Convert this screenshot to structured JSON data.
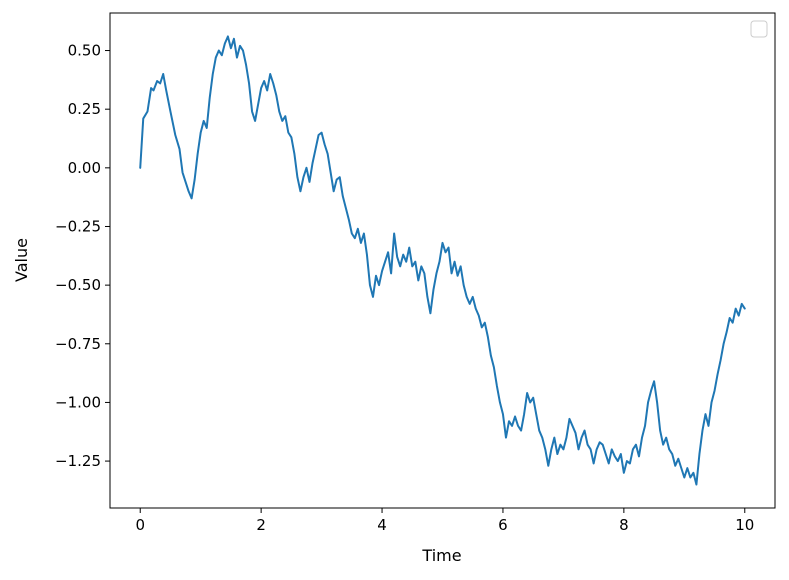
{
  "chart_data": {
    "type": "line",
    "title": "",
    "xlabel": "Time",
    "ylabel": "Value",
    "xlim": [
      -0.5,
      10.5
    ],
    "ylim": [
      -1.45,
      0.66
    ],
    "xticks": [
      0,
      2,
      4,
      6,
      8,
      10
    ],
    "xtick_labels": [
      "0",
      "2",
      "4",
      "6",
      "8",
      "10"
    ],
    "yticks": [
      0.5,
      0.25,
      0.0,
      -0.25,
      -0.5,
      -0.75,
      -1.0,
      -1.25
    ],
    "ytick_labels": [
      "0.50",
      "0.25",
      "0.00",
      "−0.25",
      "−0.50",
      "−0.75",
      "−1.00",
      "−1.25"
    ],
    "grid": false,
    "legend": {
      "placement": "top-right",
      "entries": []
    },
    "series": [
      {
        "color": "#1f77b4",
        "points": [
          [
            0.0,
            0.0
          ],
          [
            0.05,
            0.21
          ],
          [
            0.12,
            0.24
          ],
          [
            0.18,
            0.34
          ],
          [
            0.22,
            0.33
          ],
          [
            0.28,
            0.37
          ],
          [
            0.33,
            0.36
          ],
          [
            0.38,
            0.4
          ],
          [
            0.43,
            0.33
          ],
          [
            0.5,
            0.24
          ],
          [
            0.58,
            0.14
          ],
          [
            0.65,
            0.08
          ],
          [
            0.7,
            -0.02
          ],
          [
            0.75,
            -0.06
          ],
          [
            0.8,
            -0.1
          ],
          [
            0.85,
            -0.13
          ],
          [
            0.9,
            -0.05
          ],
          [
            0.95,
            0.06
          ],
          [
            1.0,
            0.15
          ],
          [
            1.05,
            0.2
          ],
          [
            1.1,
            0.17
          ],
          [
            1.15,
            0.3
          ],
          [
            1.2,
            0.4
          ],
          [
            1.25,
            0.47
          ],
          [
            1.3,
            0.5
          ],
          [
            1.35,
            0.48
          ],
          [
            1.4,
            0.53
          ],
          [
            1.45,
            0.56
          ],
          [
            1.5,
            0.51
          ],
          [
            1.55,
            0.55
          ],
          [
            1.6,
            0.47
          ],
          [
            1.65,
            0.52
          ],
          [
            1.7,
            0.5
          ],
          [
            1.75,
            0.44
          ],
          [
            1.8,
            0.36
          ],
          [
            1.85,
            0.24
          ],
          [
            1.9,
            0.2
          ],
          [
            1.95,
            0.27
          ],
          [
            2.0,
            0.34
          ],
          [
            2.05,
            0.37
          ],
          [
            2.1,
            0.33
          ],
          [
            2.15,
            0.4
          ],
          [
            2.2,
            0.36
          ],
          [
            2.25,
            0.31
          ],
          [
            2.3,
            0.24
          ],
          [
            2.35,
            0.2
          ],
          [
            2.4,
            0.22
          ],
          [
            2.45,
            0.15
          ],
          [
            2.5,
            0.13
          ],
          [
            2.55,
            0.06
          ],
          [
            2.6,
            -0.04
          ],
          [
            2.65,
            -0.1
          ],
          [
            2.7,
            -0.04
          ],
          [
            2.75,
            0.0
          ],
          [
            2.8,
            -0.06
          ],
          [
            2.85,
            0.02
          ],
          [
            2.9,
            0.08
          ],
          [
            2.95,
            0.14
          ],
          [
            3.0,
            0.15
          ],
          [
            3.05,
            0.1
          ],
          [
            3.1,
            0.06
          ],
          [
            3.15,
            -0.02
          ],
          [
            3.2,
            -0.1
          ],
          [
            3.25,
            -0.05
          ],
          [
            3.3,
            -0.04
          ],
          [
            3.35,
            -0.12
          ],
          [
            3.4,
            -0.17
          ],
          [
            3.45,
            -0.22
          ],
          [
            3.5,
            -0.28
          ],
          [
            3.55,
            -0.3
          ],
          [
            3.6,
            -0.26
          ],
          [
            3.65,
            -0.32
          ],
          [
            3.7,
            -0.28
          ],
          [
            3.75,
            -0.37
          ],
          [
            3.8,
            -0.5
          ],
          [
            3.85,
            -0.55
          ],
          [
            3.9,
            -0.46
          ],
          [
            3.95,
            -0.5
          ],
          [
            4.0,
            -0.44
          ],
          [
            4.05,
            -0.4
          ],
          [
            4.1,
            -0.36
          ],
          [
            4.15,
            -0.45
          ],
          [
            4.2,
            -0.28
          ],
          [
            4.25,
            -0.38
          ],
          [
            4.3,
            -0.42
          ],
          [
            4.35,
            -0.37
          ],
          [
            4.4,
            -0.4
          ],
          [
            4.45,
            -0.34
          ],
          [
            4.5,
            -0.42
          ],
          [
            4.55,
            -0.4
          ],
          [
            4.6,
            -0.48
          ],
          [
            4.65,
            -0.42
          ],
          [
            4.7,
            -0.45
          ],
          [
            4.75,
            -0.55
          ],
          [
            4.8,
            -0.62
          ],
          [
            4.85,
            -0.52
          ],
          [
            4.9,
            -0.45
          ],
          [
            4.95,
            -0.4
          ],
          [
            5.0,
            -0.32
          ],
          [
            5.05,
            -0.36
          ],
          [
            5.1,
            -0.34
          ],
          [
            5.15,
            -0.45
          ],
          [
            5.2,
            -0.4
          ],
          [
            5.25,
            -0.46
          ],
          [
            5.3,
            -0.42
          ],
          [
            5.35,
            -0.5
          ],
          [
            5.4,
            -0.55
          ],
          [
            5.45,
            -0.58
          ],
          [
            5.5,
            -0.55
          ],
          [
            5.55,
            -0.6
          ],
          [
            5.6,
            -0.63
          ],
          [
            5.65,
            -0.68
          ],
          [
            5.7,
            -0.66
          ],
          [
            5.75,
            -0.72
          ],
          [
            5.8,
            -0.8
          ],
          [
            5.85,
            -0.85
          ],
          [
            5.9,
            -0.93
          ],
          [
            5.95,
            -1.0
          ],
          [
            6.0,
            -1.05
          ],
          [
            6.05,
            -1.15
          ],
          [
            6.1,
            -1.08
          ],
          [
            6.15,
            -1.1
          ],
          [
            6.2,
            -1.06
          ],
          [
            6.25,
            -1.1
          ],
          [
            6.3,
            -1.12
          ],
          [
            6.35,
            -1.05
          ],
          [
            6.4,
            -0.96
          ],
          [
            6.45,
            -1.0
          ],
          [
            6.5,
            -0.98
          ],
          [
            6.55,
            -1.05
          ],
          [
            6.6,
            -1.12
          ],
          [
            6.65,
            -1.15
          ],
          [
            6.7,
            -1.2
          ],
          [
            6.75,
            -1.27
          ],
          [
            6.8,
            -1.2
          ],
          [
            6.85,
            -1.15
          ],
          [
            6.9,
            -1.22
          ],
          [
            6.95,
            -1.18
          ],
          [
            7.0,
            -1.2
          ],
          [
            7.05,
            -1.15
          ],
          [
            7.1,
            -1.07
          ],
          [
            7.15,
            -1.1
          ],
          [
            7.2,
            -1.13
          ],
          [
            7.25,
            -1.2
          ],
          [
            7.3,
            -1.15
          ],
          [
            7.35,
            -1.12
          ],
          [
            7.4,
            -1.18
          ],
          [
            7.45,
            -1.2
          ],
          [
            7.5,
            -1.26
          ],
          [
            7.55,
            -1.2
          ],
          [
            7.6,
            -1.17
          ],
          [
            7.65,
            -1.18
          ],
          [
            7.7,
            -1.22
          ],
          [
            7.75,
            -1.26
          ],
          [
            7.8,
            -1.2
          ],
          [
            7.85,
            -1.23
          ],
          [
            7.9,
            -1.25
          ],
          [
            7.95,
            -1.22
          ],
          [
            8.0,
            -1.3
          ],
          [
            8.05,
            -1.25
          ],
          [
            8.1,
            -1.26
          ],
          [
            8.15,
            -1.2
          ],
          [
            8.2,
            -1.18
          ],
          [
            8.25,
            -1.23
          ],
          [
            8.3,
            -1.15
          ],
          [
            8.35,
            -1.1
          ],
          [
            8.4,
            -1.0
          ],
          [
            8.45,
            -0.95
          ],
          [
            8.5,
            -0.91
          ],
          [
            8.55,
            -1.0
          ],
          [
            8.6,
            -1.12
          ],
          [
            8.65,
            -1.18
          ],
          [
            8.7,
            -1.15
          ],
          [
            8.75,
            -1.2
          ],
          [
            8.8,
            -1.22
          ],
          [
            8.85,
            -1.27
          ],
          [
            8.9,
            -1.24
          ],
          [
            8.95,
            -1.28
          ],
          [
            9.0,
            -1.32
          ],
          [
            9.05,
            -1.28
          ],
          [
            9.1,
            -1.32
          ],
          [
            9.15,
            -1.3
          ],
          [
            9.2,
            -1.35
          ],
          [
            9.25,
            -1.22
          ],
          [
            9.3,
            -1.12
          ],
          [
            9.35,
            -1.05
          ],
          [
            9.4,
            -1.1
          ],
          [
            9.45,
            -1.0
          ],
          [
            9.5,
            -0.95
          ],
          [
            9.55,
            -0.88
          ],
          [
            9.6,
            -0.82
          ],
          [
            9.65,
            -0.75
          ],
          [
            9.7,
            -0.7
          ],
          [
            9.75,
            -0.64
          ],
          [
            9.8,
            -0.66
          ],
          [
            9.85,
            -0.6
          ],
          [
            9.9,
            -0.63
          ],
          [
            9.95,
            -0.58
          ],
          [
            10.0,
            -0.6
          ]
        ]
      }
    ]
  }
}
